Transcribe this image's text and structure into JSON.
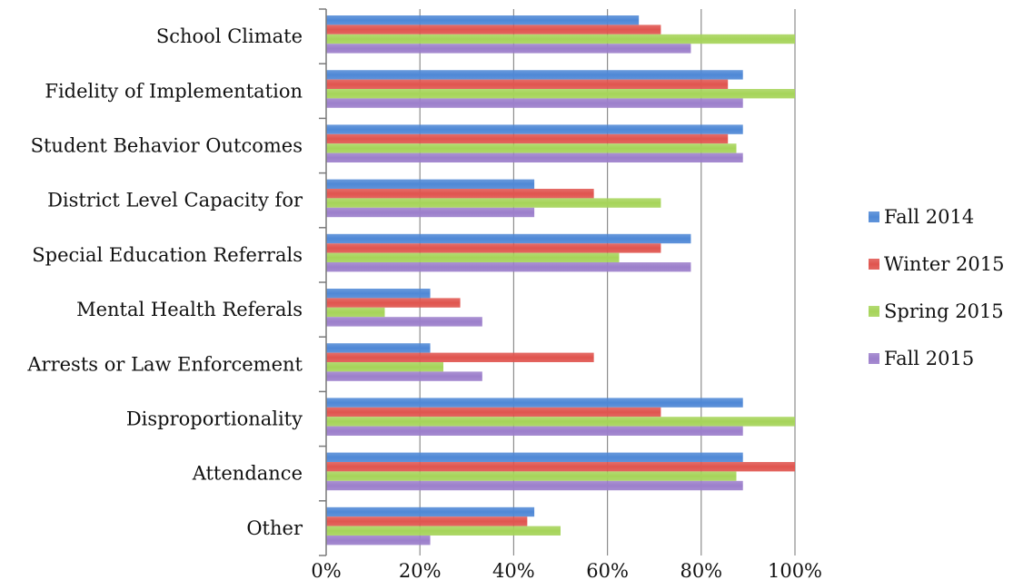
{
  "chart_data": {
    "type": "bar",
    "orientation": "horizontal",
    "title": "",
    "xlabel": "",
    "ylabel": "",
    "xlim": [
      0,
      100
    ],
    "x_unit": "%",
    "x_ticks": [
      0,
      20,
      40,
      60,
      80,
      100
    ],
    "x_tick_labels": [
      "0%",
      "20%",
      "40%",
      "60%",
      "80%",
      "100%"
    ],
    "grid": "vertical",
    "legend_position": "right",
    "categories": [
      "School Climate",
      "Fidelity of Implementation",
      "Student Behavior Outcomes",
      "District Level Capacity for",
      "Special Education Referrals",
      "Mental Health Referals",
      "Arrests or Law Enforcement",
      "Disproportionality",
      "Attendance",
      "Other"
    ],
    "series": [
      {
        "name": "Fall 2014",
        "color": "#4f88d6",
        "values": [
          66.7,
          88.9,
          88.9,
          44.4,
          77.8,
          22.2,
          22.2,
          88.9,
          88.9,
          44.4
        ]
      },
      {
        "name": "Winter 2015",
        "color": "#e0554f",
        "values": [
          71.4,
          85.7,
          85.7,
          57.1,
          71.4,
          28.6,
          57.1,
          71.4,
          100,
          42.9
        ]
      },
      {
        "name": "Spring 2015",
        "color": "#a6d45a",
        "values": [
          100,
          100,
          87.5,
          71.4,
          62.5,
          12.5,
          25,
          100,
          87.5,
          50
        ]
      },
      {
        "name": "Fall 2015",
        "color": "#9c7fcb",
        "values": [
          77.8,
          88.9,
          88.9,
          44.4,
          77.8,
          33.3,
          33.3,
          88.9,
          88.9,
          22.2
        ]
      }
    ]
  }
}
